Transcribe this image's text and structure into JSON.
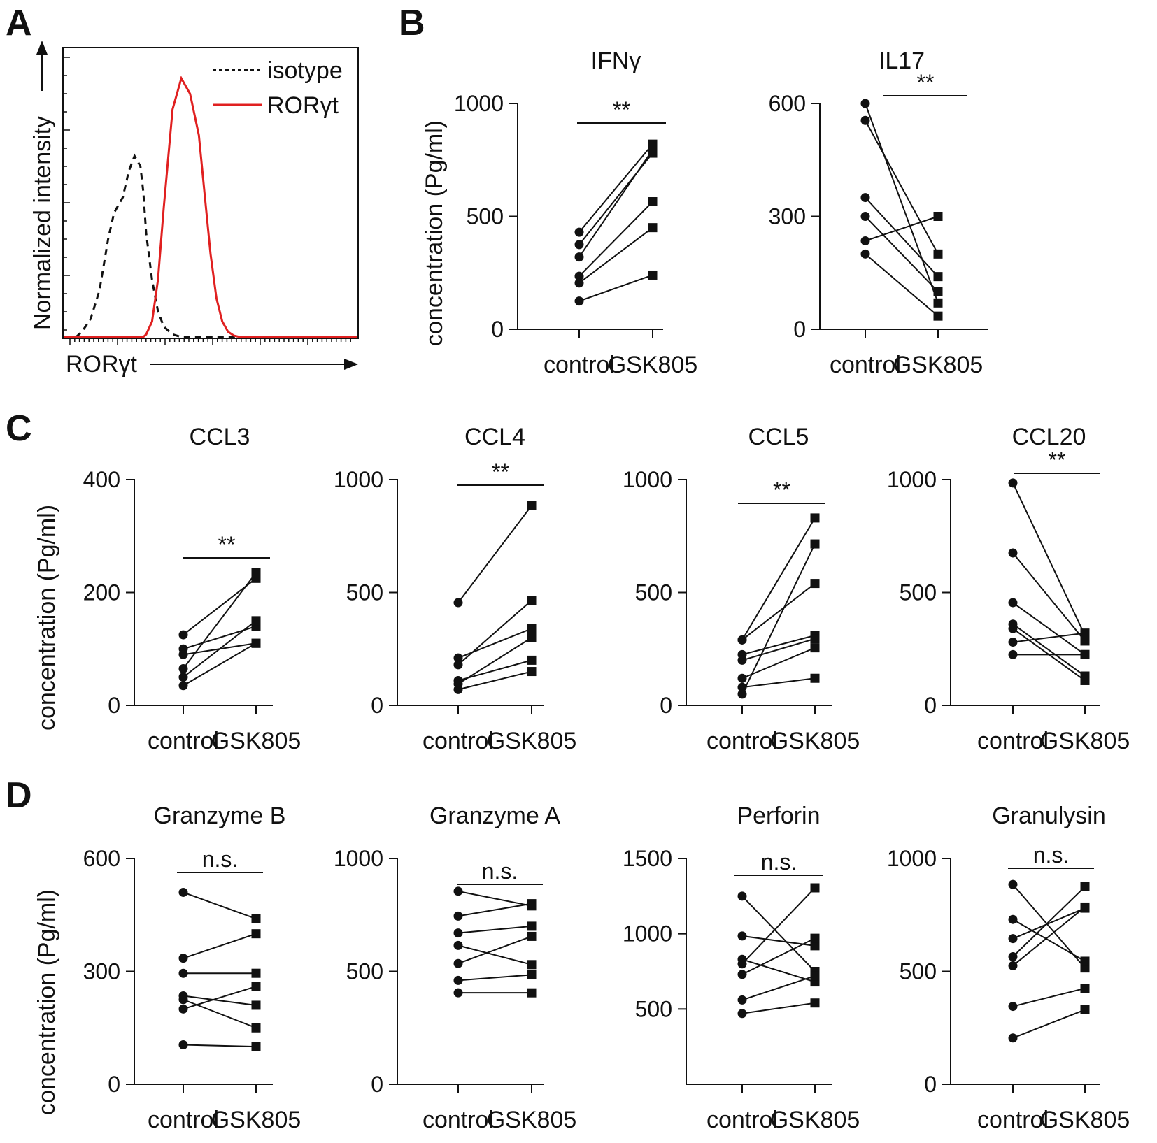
{
  "figure": {
    "panel_letters": [
      "A",
      "B",
      "C",
      "D"
    ],
    "categories": [
      "control",
      "GSK805"
    ],
    "ylabel": "concentration (Pg/ml)"
  },
  "chart_data": [
    {
      "panel": "A",
      "type": "line",
      "title": "",
      "xlabel": "RORγt",
      "ylabel": "Normalized intensity",
      "legend": [
        "isotype",
        "RORγt"
      ],
      "legend_position": "top-right",
      "colors": {
        "isotype": "#111111",
        "RORγt": "#e02020"
      },
      "x": [
        0.0,
        0.04,
        0.06,
        0.09,
        0.12,
        0.15,
        0.17,
        0.2,
        0.22,
        0.24,
        0.26,
        0.27,
        0.28,
        0.3,
        0.32,
        0.34,
        0.37,
        0.4,
        0.43,
        0.46,
        0.48,
        0.5,
        0.52,
        0.54,
        0.56,
        0.58,
        0.6,
        0.62,
        0.65,
        0.7,
        1.0
      ],
      "series": [
        {
          "name": "isotype",
          "values": [
            0.0,
            0.0,
            0.02,
            0.07,
            0.18,
            0.38,
            0.48,
            0.54,
            0.64,
            0.7,
            0.66,
            0.56,
            0.4,
            0.22,
            0.1,
            0.04,
            0.01,
            0.0,
            0.0,
            0.0,
            0.0,
            0.0,
            0.0,
            0.0,
            0.0,
            0.0,
            0.0,
            0.0,
            0.0,
            0.0,
            0.0
          ]
        },
        {
          "name": "RORγt",
          "values": [
            0.0,
            0.0,
            0.0,
            0.0,
            0.0,
            0.0,
            0.0,
            0.0,
            0.0,
            0.0,
            0.0,
            0.0,
            0.01,
            0.06,
            0.22,
            0.5,
            0.88,
            1.0,
            0.94,
            0.78,
            0.55,
            0.32,
            0.15,
            0.06,
            0.02,
            0.005,
            0.0,
            0.0,
            0.0,
            0.0,
            0.0
          ]
        }
      ]
    },
    {
      "panel": "B",
      "type": "line",
      "title": "IFNγ",
      "ylim": [
        0,
        1000
      ],
      "ticks": [
        0,
        500,
        1000
      ],
      "sig": "**",
      "control": [
        430,
        375,
        320,
        235,
        205,
        125
      ],
      "GSK805": [
        820,
        780,
        795,
        565,
        450,
        240
      ]
    },
    {
      "panel": "B",
      "type": "line",
      "title": "IL17",
      "ylim": [
        0,
        600
      ],
      "ticks": [
        0,
        300,
        600
      ],
      "sig": "**",
      "control": [
        600,
        555,
        350,
        300,
        235,
        200
      ],
      "GSK805": [
        70,
        200,
        140,
        100,
        300,
        35
      ]
    },
    {
      "panel": "C",
      "type": "line",
      "title": "CCL3",
      "ylim": [
        0,
        400
      ],
      "ticks": [
        0,
        200,
        400
      ],
      "sig": "**",
      "control": [
        125,
        100,
        90,
        65,
        50,
        35
      ],
      "GSK805": [
        225,
        140,
        110,
        235,
        150,
        110
      ]
    },
    {
      "panel": "C",
      "type": "line",
      "title": "CCL4",
      "ylim": [
        0,
        1000
      ],
      "ticks": [
        0,
        500,
        1000
      ],
      "sig": "**",
      "control": [
        455,
        210,
        180,
        110,
        95,
        70
      ],
      "GSK805": [
        885,
        340,
        465,
        200,
        300,
        150
      ]
    },
    {
      "panel": "C",
      "type": "line",
      "title": "CCL5",
      "ylim": [
        0,
        1000
      ],
      "ticks": [
        0,
        500,
        1000
      ],
      "sig": "**",
      "control": [
        290,
        290,
        225,
        200,
        120,
        80,
        50
      ],
      "GSK805": [
        830,
        540,
        310,
        295,
        255,
        120,
        715
      ]
    },
    {
      "panel": "C",
      "type": "line",
      "title": "CCL20",
      "ylim": [
        0,
        1000
      ],
      "ticks": [
        0,
        500,
        1000
      ],
      "sig": "**",
      "control": [
        985,
        675,
        455,
        360,
        340,
        280,
        225
      ],
      "GSK805": [
        310,
        285,
        225,
        130,
        110,
        320,
        225
      ]
    },
    {
      "panel": "D",
      "type": "line",
      "title": "Granzyme B",
      "ylim": [
        0,
        600
      ],
      "ticks": [
        0,
        300,
        600
      ],
      "sig": "n.s.",
      "control": [
        510,
        335,
        295,
        235,
        225,
        200,
        105
      ],
      "GSK805": [
        440,
        400,
        295,
        210,
        150,
        260,
        100
      ]
    },
    {
      "panel": "D",
      "type": "line",
      "title": "Granzyme A",
      "ylim": [
        0,
        1000
      ],
      "ticks": [
        0,
        500,
        1000
      ],
      "sig": "n.s.",
      "control": [
        855,
        745,
        670,
        615,
        535,
        460,
        405
      ],
      "GSK805": [
        790,
        800,
        700,
        530,
        655,
        485,
        405
      ]
    },
    {
      "panel": "D",
      "type": "line",
      "title": "Perforin",
      "ylim": [
        0,
        1500
      ],
      "ticks": [
        500,
        1000,
        1500
      ],
      "sig": "n.s.",
      "control": [
        1250,
        985,
        830,
        800,
        730,
        560,
        470
      ],
      "GSK805": [
        750,
        920,
        680,
        1305,
        970,
        720,
        540
      ]
    },
    {
      "panel": "D",
      "type": "line",
      "title": "Granulysin",
      "ylim": [
        0,
        1000
      ],
      "ticks": [
        0,
        500,
        1000
      ],
      "sig": "n.s.",
      "control": [
        885,
        730,
        645,
        565,
        525,
        345,
        205
      ],
      "GSK805": [
        515,
        545,
        780,
        875,
        785,
        425,
        330
      ]
    }
  ]
}
